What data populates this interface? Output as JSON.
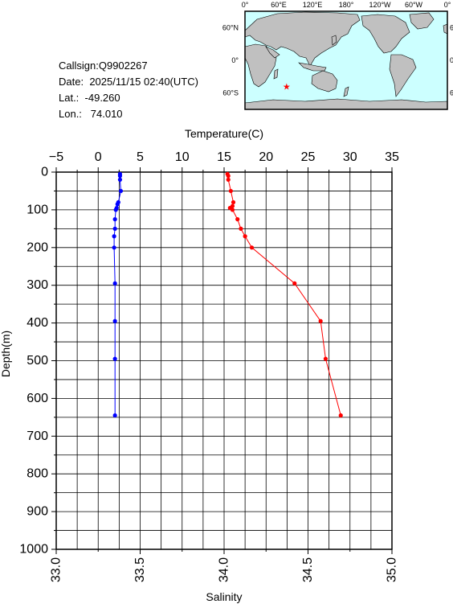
{
  "station": {
    "callsign_label": "Callsign:",
    "callsign": "Q9902267",
    "date_label": "Date:",
    "date": "2025/11/15 02:40(UTC)",
    "lat_label": "Lat.:",
    "lat": "-49.260",
    "lon_label": "Lon.:",
    "lon": "74.010"
  },
  "map": {
    "lon_ticks": [
      "0°",
      "60°E",
      "120°E",
      "180°",
      "120°W",
      "60°W",
      "0°"
    ],
    "lat_ticks": [
      "60°N",
      "0°",
      "60°S"
    ],
    "marker_lon": 74.01,
    "marker_lat": -49.26,
    "colors": {
      "ocean": "#ccffff",
      "land": "#c0c0c0",
      "marker": "#ff0000"
    }
  },
  "chart_data": {
    "type": "line",
    "ylabel": "Depth(m)",
    "y_ticks": [
      0,
      100,
      200,
      300,
      400,
      500,
      600,
      700,
      800,
      900,
      1000
    ],
    "ylim": [
      0,
      1000
    ],
    "y_inverted": true,
    "grid": true,
    "top_axis": {
      "label": "Temperature(C)",
      "ticks": [
        -5,
        0,
        5,
        10,
        15,
        20,
        25,
        30,
        35
      ],
      "xlim": [
        -5,
        35
      ]
    },
    "bottom_axis": {
      "label": "Salinity",
      "ticks": [
        "33.0",
        "33.5",
        "34.0",
        "34.5",
        "35.0"
      ],
      "xlim": [
        33.0,
        35.0
      ]
    },
    "series": [
      {
        "axis": "top",
        "color": "#ff0000",
        "points": [
          {
            "x": 15.4,
            "depth": 5
          },
          {
            "x": 15.5,
            "depth": 10
          },
          {
            "x": 15.5,
            "depth": 20
          },
          {
            "x": 15.8,
            "depth": 50
          },
          {
            "x": 16.1,
            "depth": 80
          },
          {
            "x": 16.0,
            "depth": 90
          },
          {
            "x": 15.7,
            "depth": 95
          },
          {
            "x": 16.0,
            "depth": 100
          },
          {
            "x": 16.6,
            "depth": 125
          },
          {
            "x": 17.0,
            "depth": 150
          },
          {
            "x": 17.5,
            "depth": 170
          },
          {
            "x": 18.3,
            "depth": 200
          },
          {
            "x": 23.4,
            "depth": 295
          },
          {
            "x": 26.5,
            "depth": 395
          },
          {
            "x": 27.1,
            "depth": 495
          },
          {
            "x": 28.9,
            "depth": 645
          }
        ]
      },
      {
        "axis": "bottom",
        "color": "#0000ff",
        "points": [
          {
            "x": 33.38,
            "depth": 5
          },
          {
            "x": 33.38,
            "depth": 10
          },
          {
            "x": 33.38,
            "depth": 20
          },
          {
            "x": 33.385,
            "depth": 50
          },
          {
            "x": 33.37,
            "depth": 80
          },
          {
            "x": 33.365,
            "depth": 85
          },
          {
            "x": 33.36,
            "depth": 95
          },
          {
            "x": 33.355,
            "depth": 100
          },
          {
            "x": 33.35,
            "depth": 125
          },
          {
            "x": 33.35,
            "depth": 150
          },
          {
            "x": 33.345,
            "depth": 170
          },
          {
            "x": 33.345,
            "depth": 200
          },
          {
            "x": 33.35,
            "depth": 295
          },
          {
            "x": 33.35,
            "depth": 395
          },
          {
            "x": 33.35,
            "depth": 495
          },
          {
            "x": 33.35,
            "depth": 645
          }
        ]
      }
    ]
  }
}
